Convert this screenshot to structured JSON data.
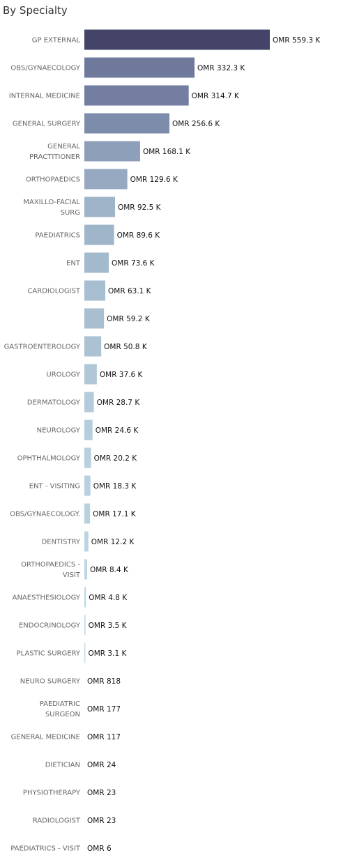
{
  "chart_data": {
    "type": "bar",
    "orientation": "horizontal",
    "title": "By Specialty",
    "value_prefix": "OMR ",
    "categories": [
      "GP EXTERNAL",
      "OBS/GYNAECOLOGY",
      "INTERNAL MEDICINE",
      "GENERAL SURGERY",
      "GENERAL PRACTITIONER",
      "ORTHOPAEDICS",
      "MAXILLO-FACIAL SURG",
      "PAEDIATRICS",
      "ENT",
      "CARDIOLOGIST",
      "",
      "GASTROENTEROLOGY",
      "UROLOGY",
      "DERMATOLOGY",
      "NEUROLOGY",
      "OPHTHALMOLOGY",
      "ENT - VISITING",
      "OBS/GYNAECOLOGY.",
      "DENTISTRY",
      "ORTHOPAEDICS - VISIT",
      "ANAESTHESIOLOGY",
      "ENDOCRINOLOGY",
      "PLASTIC SURGERY",
      "NEURO SURGERY",
      "PAEDIATRIC SURGEON",
      "GENERAL MEDICINE",
      "DIETICIAN",
      "PHYSIOTHERAPY",
      "RADIOLOGIST",
      "PAEDIATRICS - VISIT"
    ],
    "values": [
      559300,
      332300,
      314700,
      256600,
      168100,
      129600,
      92500,
      89600,
      73600,
      63100,
      59200,
      50800,
      37600,
      28700,
      24600,
      20200,
      18300,
      17100,
      12200,
      8400,
      4800,
      3500,
      3100,
      818,
      177,
      117,
      24,
      23,
      23,
      6
    ],
    "value_labels": [
      "OMR 559.3 K",
      "OMR 332.3 K",
      "OMR 314.7 K",
      "OMR 256.6 K",
      "OMR 168.1 K",
      "OMR 129.6 K",
      "OMR 92.5 K",
      "OMR 89.6 K",
      "OMR 73.6 K",
      "OMR 63.1 K",
      "OMR 59.2 K",
      "OMR 50.8 K",
      "OMR 37.6 K",
      "OMR 28.7 K",
      "OMR 24.6 K",
      "OMR 20.2 K",
      "OMR 18.3 K",
      "OMR 17.1 K",
      "OMR 12.2 K",
      "OMR 8.4 K",
      "OMR 4.8 K",
      "OMR 3.5 K",
      "OMR 3.1 K",
      "OMR 818",
      "OMR 177",
      "OMR 117",
      "OMR 24",
      "OMR 23",
      "OMR 23",
      "OMR 6"
    ],
    "xlim": [
      0,
      559300
    ],
    "grid": false,
    "color_scale": [
      "#c7e1ec",
      "#9fb5c9",
      "#7a86a8",
      "#434468"
    ]
  }
}
